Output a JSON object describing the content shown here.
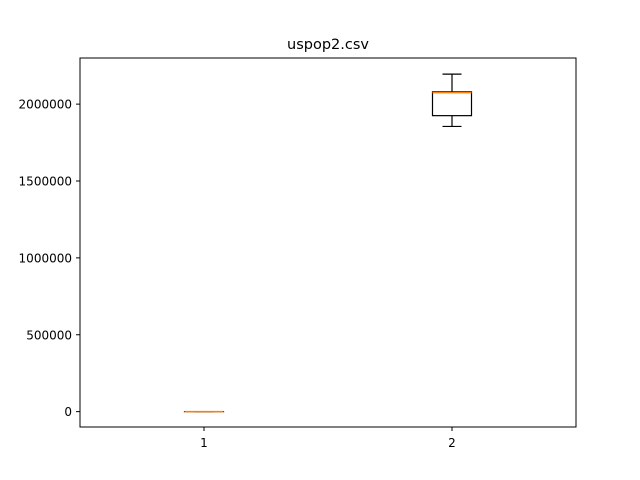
{
  "chart_data": {
    "type": "boxplot",
    "title": "uspop2.csv",
    "xlabel": "",
    "ylabel": "",
    "categories": [
      "1",
      "2"
    ],
    "ylim": [
      -100000,
      2300000
    ],
    "yticks": [
      0,
      500000,
      1000000,
      1500000,
      2000000
    ],
    "ytick_labels": [
      "0",
      "500000",
      "1000000",
      "1500000",
      "2000000"
    ],
    "grid": false,
    "boxes": [
      {
        "label": "1",
        "whisker_low": 0,
        "q1": 0,
        "median": 0,
        "q3": 0,
        "whisker_high": 0
      },
      {
        "label": "2",
        "whisker_low": 1855000,
        "q1": 1925000,
        "median": 2075000,
        "q3": 2080000,
        "whisker_high": 2195000
      }
    ],
    "colors": {
      "box": "#000000",
      "median": "#ff7f0e",
      "axes": "#000000"
    }
  }
}
